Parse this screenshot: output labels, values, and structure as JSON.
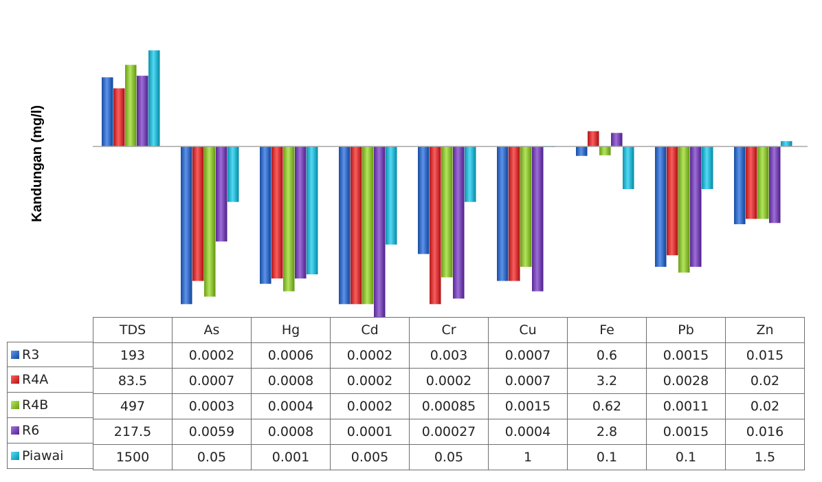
{
  "chart_data": {
    "type": "bar",
    "ylabel": "Kandungan (mg/l)",
    "yscale": "log",
    "baseline": 1,
    "categories": [
      "TDS",
      "As",
      "Hg",
      "Cd",
      "Cr",
      "Cu",
      "Fe",
      "Pb",
      "Zn"
    ],
    "series": [
      {
        "name": "R3",
        "color": "#3a6fc6",
        "values": [
          "193",
          "0.0002",
          "0.0006",
          "0.0002",
          "0.003",
          "0.0007",
          "0.6",
          "0.0015",
          "0.015"
        ]
      },
      {
        "name": "R4A",
        "color": "#d63a3a",
        "values": [
          "83.5",
          "0.0007",
          "0.0008",
          "0.0002",
          "0.0002",
          "0.0007",
          "3.2",
          "0.0028",
          "0.02"
        ]
      },
      {
        "name": "R4B",
        "color": "#8fc23a",
        "values": [
          "497",
          "0.0003",
          "0.0004",
          "0.0002",
          "0.00085",
          "0.0015",
          "0.62",
          "0.0011",
          "0.02"
        ]
      },
      {
        "name": "R6",
        "color": "#7a4bb5",
        "values": [
          "217.5",
          "0.0059",
          "0.0008",
          "0.0001",
          "0.00027",
          "0.0004",
          "2.8",
          "0.0015",
          "0.016"
        ]
      },
      {
        "name": "Piawai",
        "color": "#2fb6d1",
        "values": [
          "1500",
          "0.05",
          "0.001",
          "0.005",
          "0.05",
          "1",
          "0.1",
          "0.1",
          "1.5"
        ]
      }
    ]
  }
}
